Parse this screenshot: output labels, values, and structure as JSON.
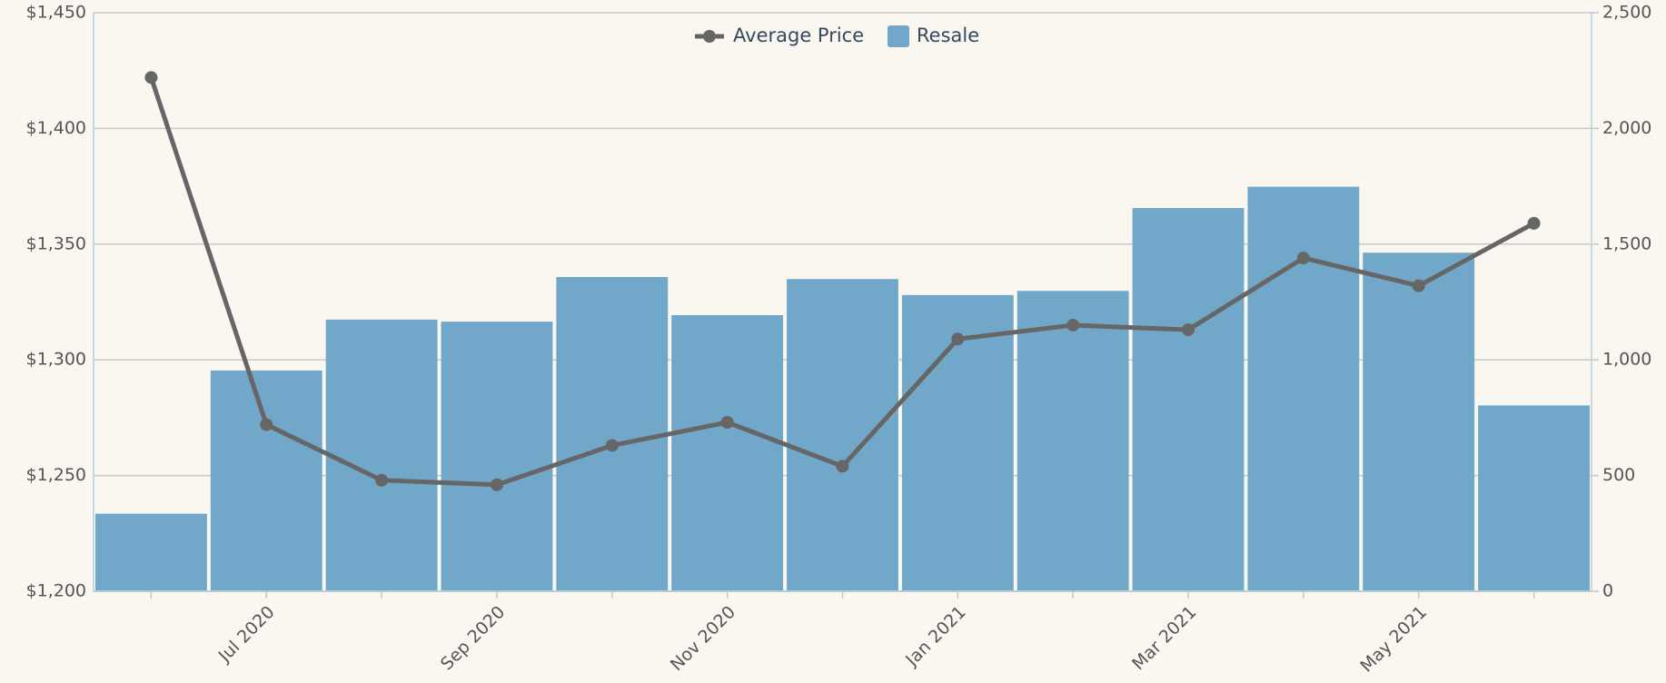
{
  "chart_data": {
    "type": "bar-line",
    "categories": [
      null,
      "Jul 2020",
      null,
      "Sep 2020",
      null,
      "Nov 2020",
      null,
      "Jan 2021",
      null,
      "Mar 2021",
      null,
      "May 2021",
      null
    ],
    "series": [
      {
        "name": "Average Price",
        "type": "line",
        "color": "#666666",
        "axis": "y",
        "values": [
          1422,
          1272,
          1248,
          1246,
          1263,
          1273,
          1254,
          1309,
          1315,
          1313,
          1344,
          1332,
          1359
        ]
      },
      {
        "name": "Resale",
        "type": "bar",
        "color": "#71a7c8",
        "axis": "y2",
        "values": [
          335,
          954,
          1174,
          1165,
          1358,
          1193,
          1349,
          1280,
          1298,
          1656,
          1748,
          1463,
          803
        ]
      }
    ],
    "ylim": [
      1200,
      1450
    ],
    "yticks": [
      {
        "value": 1200,
        "label": "$1,200"
      },
      {
        "value": 1250,
        "label": "$1,250"
      },
      {
        "value": 1300,
        "label": "$1,300"
      },
      {
        "value": 1350,
        "label": "$1,350"
      },
      {
        "value": 1400,
        "label": "$1,400"
      },
      {
        "value": 1450,
        "label": "$1,450"
      }
    ],
    "y2lim": [
      0,
      2500
    ],
    "y2ticks": [
      0,
      500,
      {
        "value": 1000,
        "label": "1,000"
      },
      {
        "value": 1500,
        "label": "1,500"
      },
      {
        "value": 2000,
        "label": "2,000"
      },
      {
        "value": 2500,
        "label": "2,500"
      }
    ],
    "grid": true,
    "legend": "top"
  }
}
